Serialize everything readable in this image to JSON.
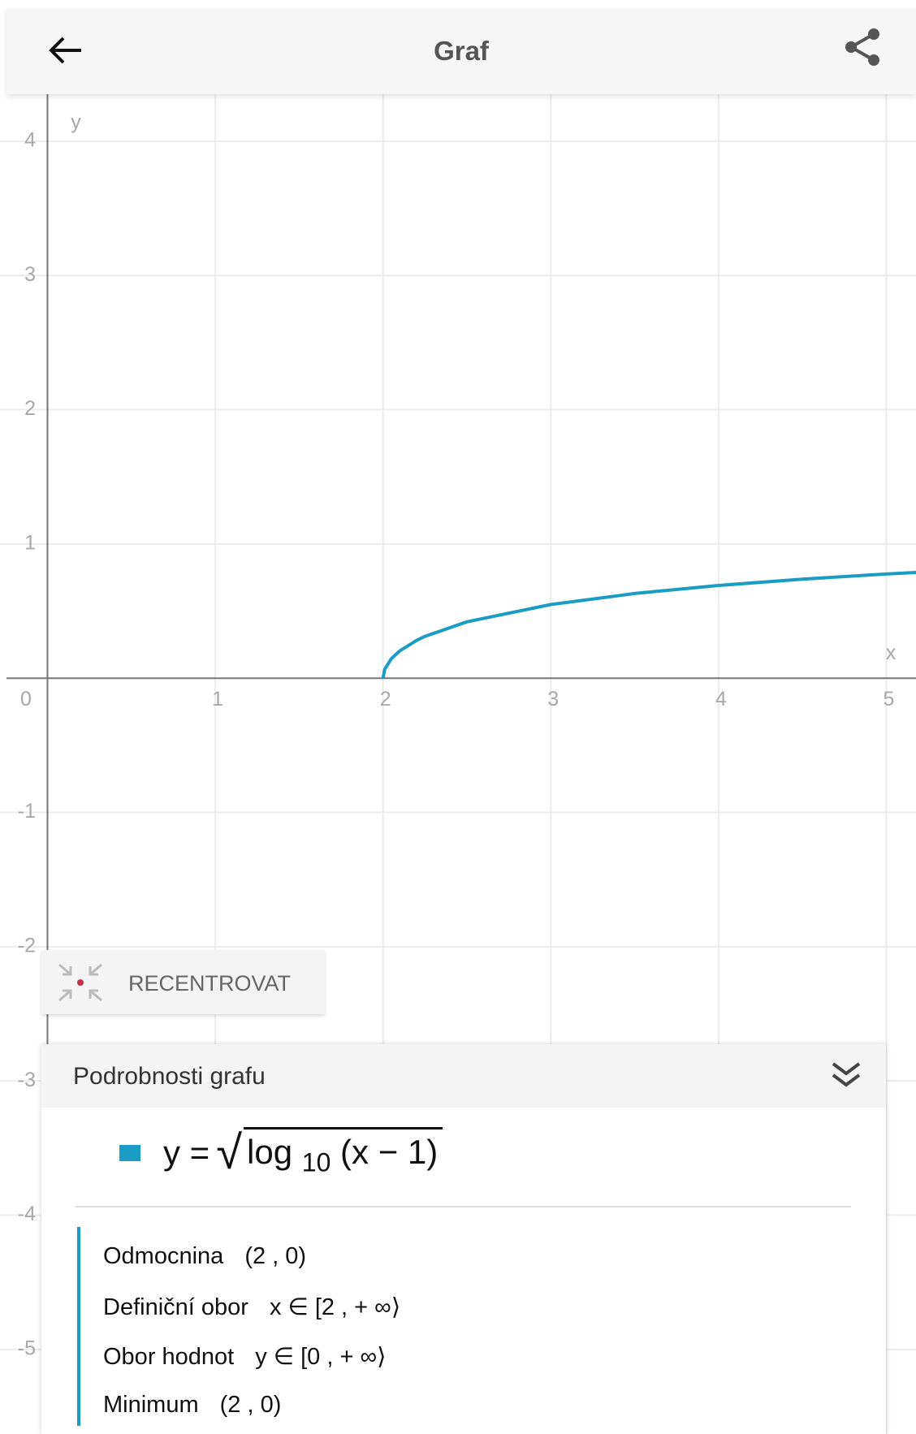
{
  "header": {
    "title": "Graf"
  },
  "chart_data": {
    "type": "line",
    "x_label": "x",
    "y_label": "y",
    "x": [
      2,
      2.01,
      2.05,
      2.1,
      2.2,
      2.25,
      2.5,
      3,
      3.5,
      4,
      4.5,
      5,
      5.2
    ],
    "series": [
      {
        "name": "y = √log 10 (x − 1)",
        "color": "#1a9cc4",
        "values": [
          0,
          0.0657,
          0.1456,
          0.2034,
          0.2814,
          0.3113,
          0.4196,
          0.5487,
          0.6308,
          0.6907,
          0.7376,
          0.7759,
          0.7895
        ]
      }
    ],
    "xlim": [
      -0.283,
      5.177
    ],
    "ylim": [
      -5.63,
      4.35
    ],
    "xticks": [
      0,
      1,
      2,
      3,
      4,
      5
    ],
    "yticks": [
      -5,
      -4,
      -3,
      -2,
      -1,
      1,
      2,
      3,
      4
    ],
    "grid": true
  },
  "recenter_button": "RECENTROVAT",
  "panel": {
    "title": "Podrobnosti grafu",
    "equation": {
      "lhs": "y =",
      "func": "log",
      "base": "10",
      "arg": "(x − 1)"
    },
    "details": [
      {
        "label": "Odmocnina",
        "value": "(2 , 0)"
      },
      {
        "label": "Definiční obor",
        "value": "x ∈ [2 , + ∞⟩"
      },
      {
        "label": "Obor hodnot",
        "value": "y ∈ [0 , + ∞⟩"
      },
      {
        "label": "Minimum",
        "value": "(2 , 0)"
      }
    ]
  }
}
